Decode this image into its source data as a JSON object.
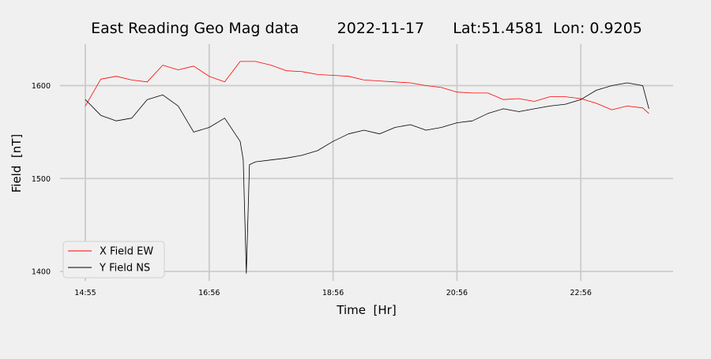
{
  "chart_data": {
    "type": "line",
    "title": "East Reading Geo Mag data        2022-11-17      Lat:51.4581  Lon: 0.9205",
    "xlabel": "Time  [Hr]",
    "ylabel": "Field  [nT]",
    "x_tick_labels": [
      "14:55",
      "16:56",
      "18:56",
      "20:56",
      "22:56"
    ],
    "x_ticks_hours": [
      0,
      2,
      4,
      6,
      8
    ],
    "xlim_hours": [
      -0.4,
      9.45
    ],
    "y_ticks": [
      1400,
      1500,
      1600
    ],
    "y_tick_labels": [
      "1400",
      "1500",
      "1600"
    ],
    "ylim": [
      1392,
      1645
    ],
    "grid": true,
    "legend_position": "lower-left",
    "series": [
      {
        "name": "X Field EW",
        "color": "#ff0000",
        "x_hours": [
          0,
          0.25,
          0.5,
          0.75,
          1.0,
          1.25,
          1.5,
          1.75,
          2.0,
          2.25,
          2.5,
          2.75,
          3.0,
          3.25,
          3.5,
          3.75,
          4.0,
          4.25,
          4.5,
          4.75,
          5.0,
          5.25,
          5.5,
          5.75,
          6.0,
          6.25,
          6.5,
          6.75,
          7.0,
          7.25,
          7.5,
          7.75,
          8.0,
          8.25,
          8.5,
          8.75,
          9.0,
          9.1
        ],
        "values": [
          1578,
          1607,
          1610,
          1606,
          1604,
          1622,
          1617,
          1621,
          1610,
          1604,
          1626,
          1626,
          1622,
          1616,
          1615,
          1612,
          1611,
          1610,
          1606,
          1605,
          1604,
          1603,
          1600,
          1598,
          1593,
          1592,
          1592,
          1585,
          1586,
          1583,
          1588,
          1588,
          1586,
          1581,
          1574,
          1578,
          1576,
          1570
        ]
      },
      {
        "name": "Y Field NS",
        "color": "#000000",
        "x_hours": [
          0,
          0.25,
          0.5,
          0.75,
          1.0,
          1.25,
          1.5,
          1.75,
          2.0,
          2.25,
          2.5,
          2.55,
          2.6,
          2.65,
          2.75,
          3.0,
          3.25,
          3.5,
          3.75,
          4.0,
          4.25,
          4.5,
          4.75,
          5.0,
          5.25,
          5.5,
          5.75,
          6.0,
          6.25,
          6.5,
          6.75,
          7.0,
          7.25,
          7.5,
          7.75,
          8.0,
          8.25,
          8.5,
          8.75,
          9.0,
          9.1
        ],
        "values": [
          1585,
          1568,
          1562,
          1565,
          1585,
          1590,
          1578,
          1550,
          1555,
          1565,
          1540,
          1520,
          1398,
          1515,
          1518,
          1520,
          1522,
          1525,
          1530,
          1540,
          1548,
          1552,
          1548,
          1555,
          1558,
          1552,
          1555,
          1560,
          1562,
          1570,
          1575,
          1572,
          1575,
          1578,
          1580,
          1585,
          1595,
          1600,
          1603,
          1600,
          1575
        ]
      }
    ]
  }
}
